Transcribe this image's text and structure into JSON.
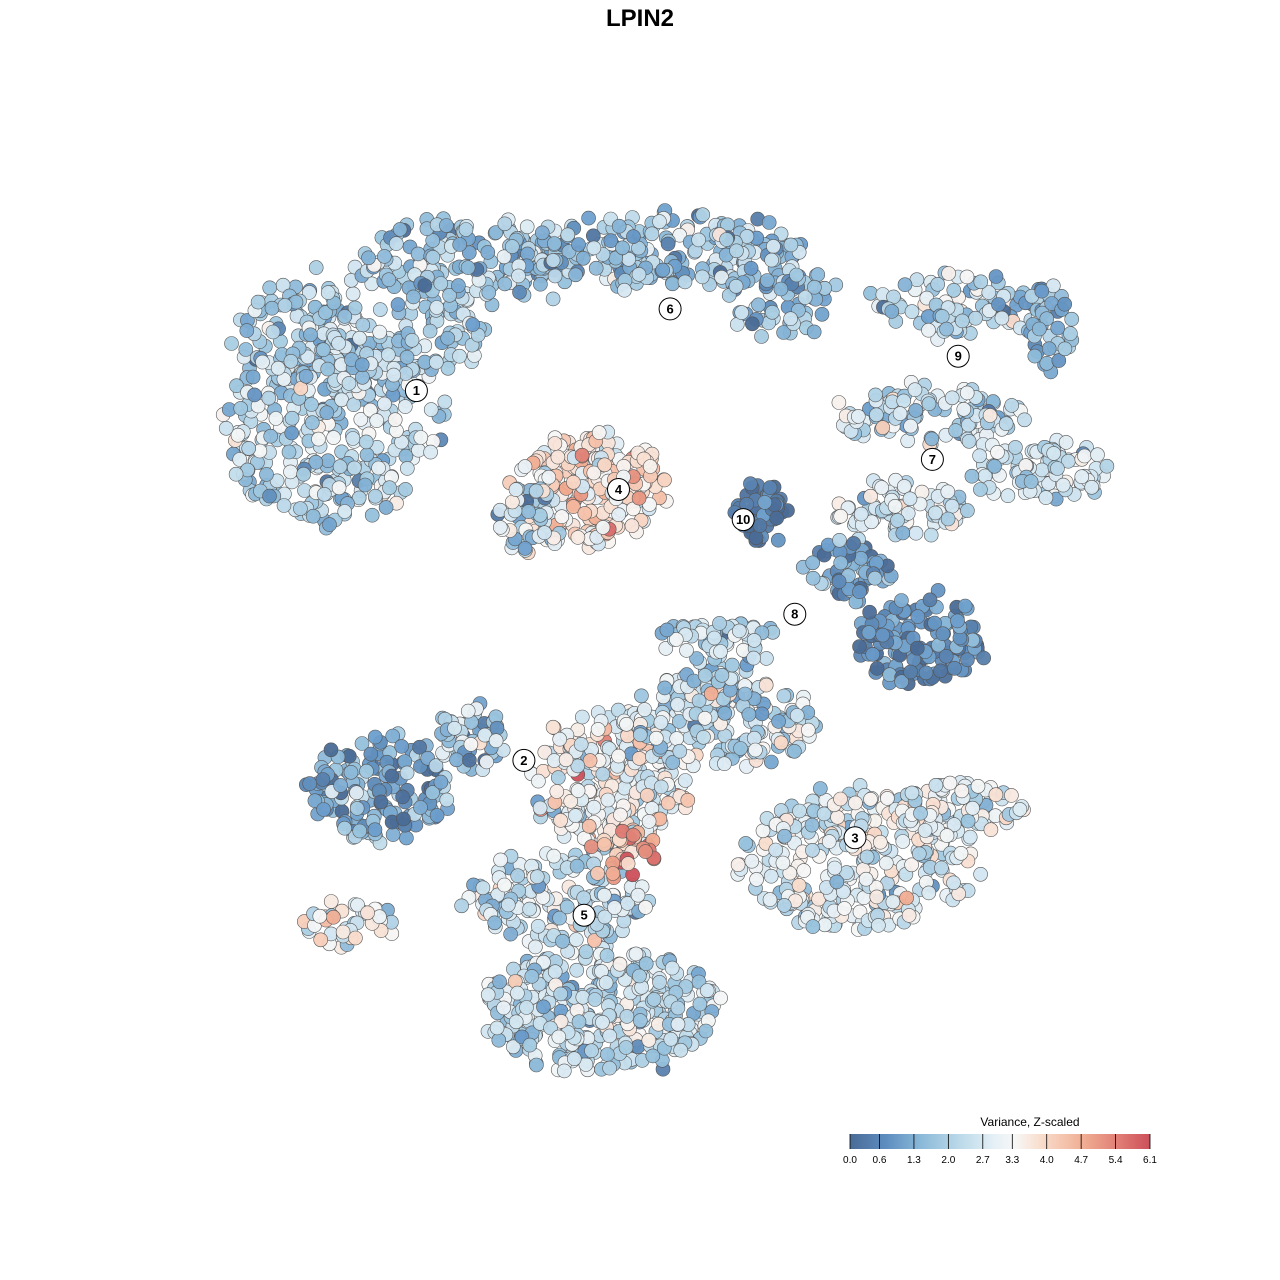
{
  "chart_data": {
    "type": "scatter",
    "title": "LPIN2",
    "xlabel": "",
    "ylabel": "",
    "grid": false,
    "legend_placement": "bottom-right",
    "legend": {
      "title": "Variance, Z-scaled",
      "ticks": [
        "0.0",
        "0.6",
        "1.3",
        "2.0",
        "2.7",
        "3.3",
        "4.0",
        "4.7",
        "5.4",
        "6.1"
      ],
      "range": [
        0.0,
        6.1
      ],
      "colors": [
        "#4a6b96",
        "#6a9ccb",
        "#9ac4de",
        "#d2e6f1",
        "#f7f7f7",
        "#f9d9c8",
        "#f0a88c",
        "#cc4f5a"
      ]
    },
    "clusters": [
      {
        "label": "1",
        "x": -0.52,
        "y": 0.58,
        "mean": 2.2
      },
      {
        "label": "2",
        "x": -0.27,
        "y": -0.28,
        "mean": 1.5
      },
      {
        "label": "3",
        "x": 0.5,
        "y": -0.46,
        "mean": 3.0
      },
      {
        "label": "4",
        "x": -0.05,
        "y": 0.35,
        "mean": 3.9
      },
      {
        "label": "5",
        "x": -0.13,
        "y": -0.64,
        "mean": 2.4
      },
      {
        "label": "6",
        "x": 0.07,
        "y": 0.77,
        "mean": 1.9
      },
      {
        "label": "7",
        "x": 0.68,
        "y": 0.42,
        "mean": 2.5
      },
      {
        "label": "8",
        "x": 0.36,
        "y": 0.06,
        "mean": 1.6
      },
      {
        "label": "9",
        "x": 0.74,
        "y": 0.66,
        "mean": 2.3
      },
      {
        "label": "10",
        "x": 0.24,
        "y": 0.28,
        "mean": 0.4
      }
    ]
  }
}
